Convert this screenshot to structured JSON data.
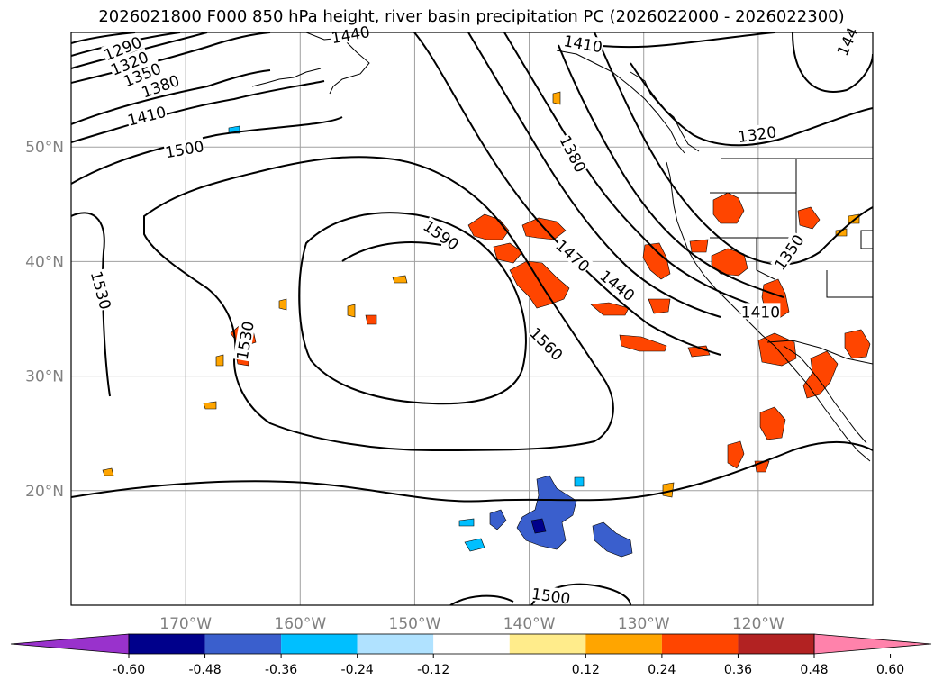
{
  "title": "2026021800 F000 850 hPa height, river basin precipitation PC (2026022000 - 2026022300)",
  "map": {
    "projection": "plate carree",
    "lon_range": [
      -180,
      -110
    ],
    "lat_range": [
      10,
      60
    ],
    "lat_ticks": [
      {
        "lat": 50,
        "label": "50°N"
      },
      {
        "lat": 40,
        "label": "40°N"
      },
      {
        "lat": 30,
        "label": "30°N"
      },
      {
        "lat": 20,
        "label": "20°N"
      }
    ],
    "lon_ticks": [
      {
        "lon": -170,
        "label": "170°W"
      },
      {
        "lon": -160,
        "label": "160°W"
      },
      {
        "lon": -150,
        "label": "150°W"
      },
      {
        "lon": -140,
        "label": "140°W"
      },
      {
        "lon": -130,
        "label": "130°W"
      },
      {
        "lon": -120,
        "label": "120°W"
      }
    ],
    "grid_color": "#a0a0a0",
    "axis_label_color": "#808080"
  },
  "contour_labels": [
    {
      "text": "1290",
      "lon": -175.5,
      "lat": 58.6,
      "rot": -22
    },
    {
      "text": "1320",
      "lon": -174.9,
      "lat": 57.3,
      "rot": -22
    },
    {
      "text": "1350",
      "lon": -173.8,
      "lat": 56.3,
      "rot": -22
    },
    {
      "text": "1380",
      "lon": -172.2,
      "lat": 55.3,
      "rot": -20
    },
    {
      "text": "1410",
      "lon": -173.4,
      "lat": 52.7,
      "rot": -14
    },
    {
      "text": "1500",
      "lon": -170.1,
      "lat": 49.8,
      "rot": -10
    },
    {
      "text": "1530",
      "lon": -177.4,
      "lat": 37.5,
      "rot": 75
    },
    {
      "text": "1530",
      "lon": -164.8,
      "lat": 33.1,
      "rot": -80
    },
    {
      "text": "1590",
      "lon": -147.7,
      "lat": 42.3,
      "rot": 35
    },
    {
      "text": "1560",
      "lon": -138.5,
      "lat": 32.8,
      "rot": 45
    },
    {
      "text": "1470",
      "lon": -136.2,
      "lat": 40.5,
      "rot": 42
    },
    {
      "text": "1440",
      "lon": -132.3,
      "lat": 37.9,
      "rot": 38
    },
    {
      "text": "1380",
      "lon": -136.2,
      "lat": 49.4,
      "rot": 63
    },
    {
      "text": "1410",
      "lon": -135.3,
      "lat": 59.0,
      "rot": 10
    },
    {
      "text": "1320",
      "lon": -120.1,
      "lat": 51.1,
      "rot": -8
    },
    {
      "text": "1350",
      "lon": -117.3,
      "lat": 40.8,
      "rot": -55
    },
    {
      "text": "1410",
      "lon": -119.8,
      "lat": 35.6,
      "rot": 0
    },
    {
      "text": "1500",
      "lon": -138.1,
      "lat": 10.8,
      "rot": 8
    },
    {
      "text": "1440",
      "lon": -155.6,
      "lat": 59.8,
      "rot": -10
    },
    {
      "text": "144",
      "lon": -112.2,
      "lat": 59.2,
      "rot": -65
    }
  ],
  "colorbar": {
    "levels": [
      "-0.60",
      "-0.48",
      "-0.36",
      "-0.24",
      "-0.12",
      "0.12",
      "0.24",
      "0.36",
      "0.48",
      "0.60"
    ],
    "colors": [
      "#9932cc",
      "#00008b",
      "#3a5fcd",
      "#00bfff",
      "#b0e2ff",
      "#ffffff",
      "#ffec8b",
      "#ffa500",
      "#ff4500",
      "#b22222",
      "#ff82ab"
    ]
  }
}
